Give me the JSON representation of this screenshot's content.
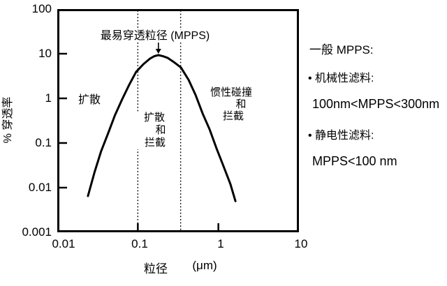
{
  "chart_data": {
    "type": "line",
    "title": "",
    "x_axis_title": "粒径",
    "x_axis_unit": "(μm)",
    "y_axis_title": "% 穿透率",
    "x_scale": "log",
    "y_scale": "log",
    "xlim": [
      0.01,
      10
    ],
    "ylim": [
      0.001,
      100
    ],
    "x_ticks": [
      "0.01",
      "0.1",
      "1",
      "10"
    ],
    "y_ticks": [
      "100",
      "10",
      "1",
      "0.1",
      "0.01",
      "0.001"
    ],
    "grid": false,
    "legend": false,
    "annotation": "最易穿透粒径 (MPPS)",
    "peak": {
      "x_um": 0.18,
      "y_percent": 9.3
    },
    "boundary_lines_um": [
      0.1,
      0.34
    ],
    "series": [
      {
        "name": "penetration-vs-particle-size",
        "x_um": [
          0.024,
          0.029,
          0.035,
          0.043,
          0.052,
          0.064,
          0.078,
          0.095,
          0.117,
          0.142,
          0.16,
          0.18,
          0.205,
          0.234,
          0.286,
          0.343,
          0.427,
          0.52,
          0.64,
          0.78,
          0.95,
          1.16,
          1.41,
          1.63
        ],
        "y_percent": [
          0.0065,
          0.022,
          0.065,
          0.17,
          0.42,
          0.96,
          2.0,
          3.9,
          5.8,
          7.8,
          8.8,
          9.3,
          8.8,
          8.1,
          6.3,
          4.9,
          2.6,
          1.2,
          0.45,
          0.2,
          0.075,
          0.03,
          0.012,
          0.005
        ]
      }
    ],
    "regions": {
      "diffusion": {
        "lines": [
          "扩散"
        ]
      },
      "diffusion_and_interception": {
        "lines": [
          "扩散",
          "和",
          "拦截"
        ]
      },
      "impaction_and_interception": {
        "lines": [
          "惯性碰撞",
          "和",
          "拦截"
        ]
      }
    }
  },
  "side_panel": {
    "title": "一般 MPPS:",
    "items": [
      {
        "label": "• 机械性滤料:",
        "value": "100nm<MPPS<300nm"
      },
      {
        "label": "• 静电性滤料:",
        "value": "MPPS<100 nm"
      }
    ]
  },
  "colors": {
    "line": "#000000",
    "text": "#000000",
    "background": "#ffffff"
  }
}
